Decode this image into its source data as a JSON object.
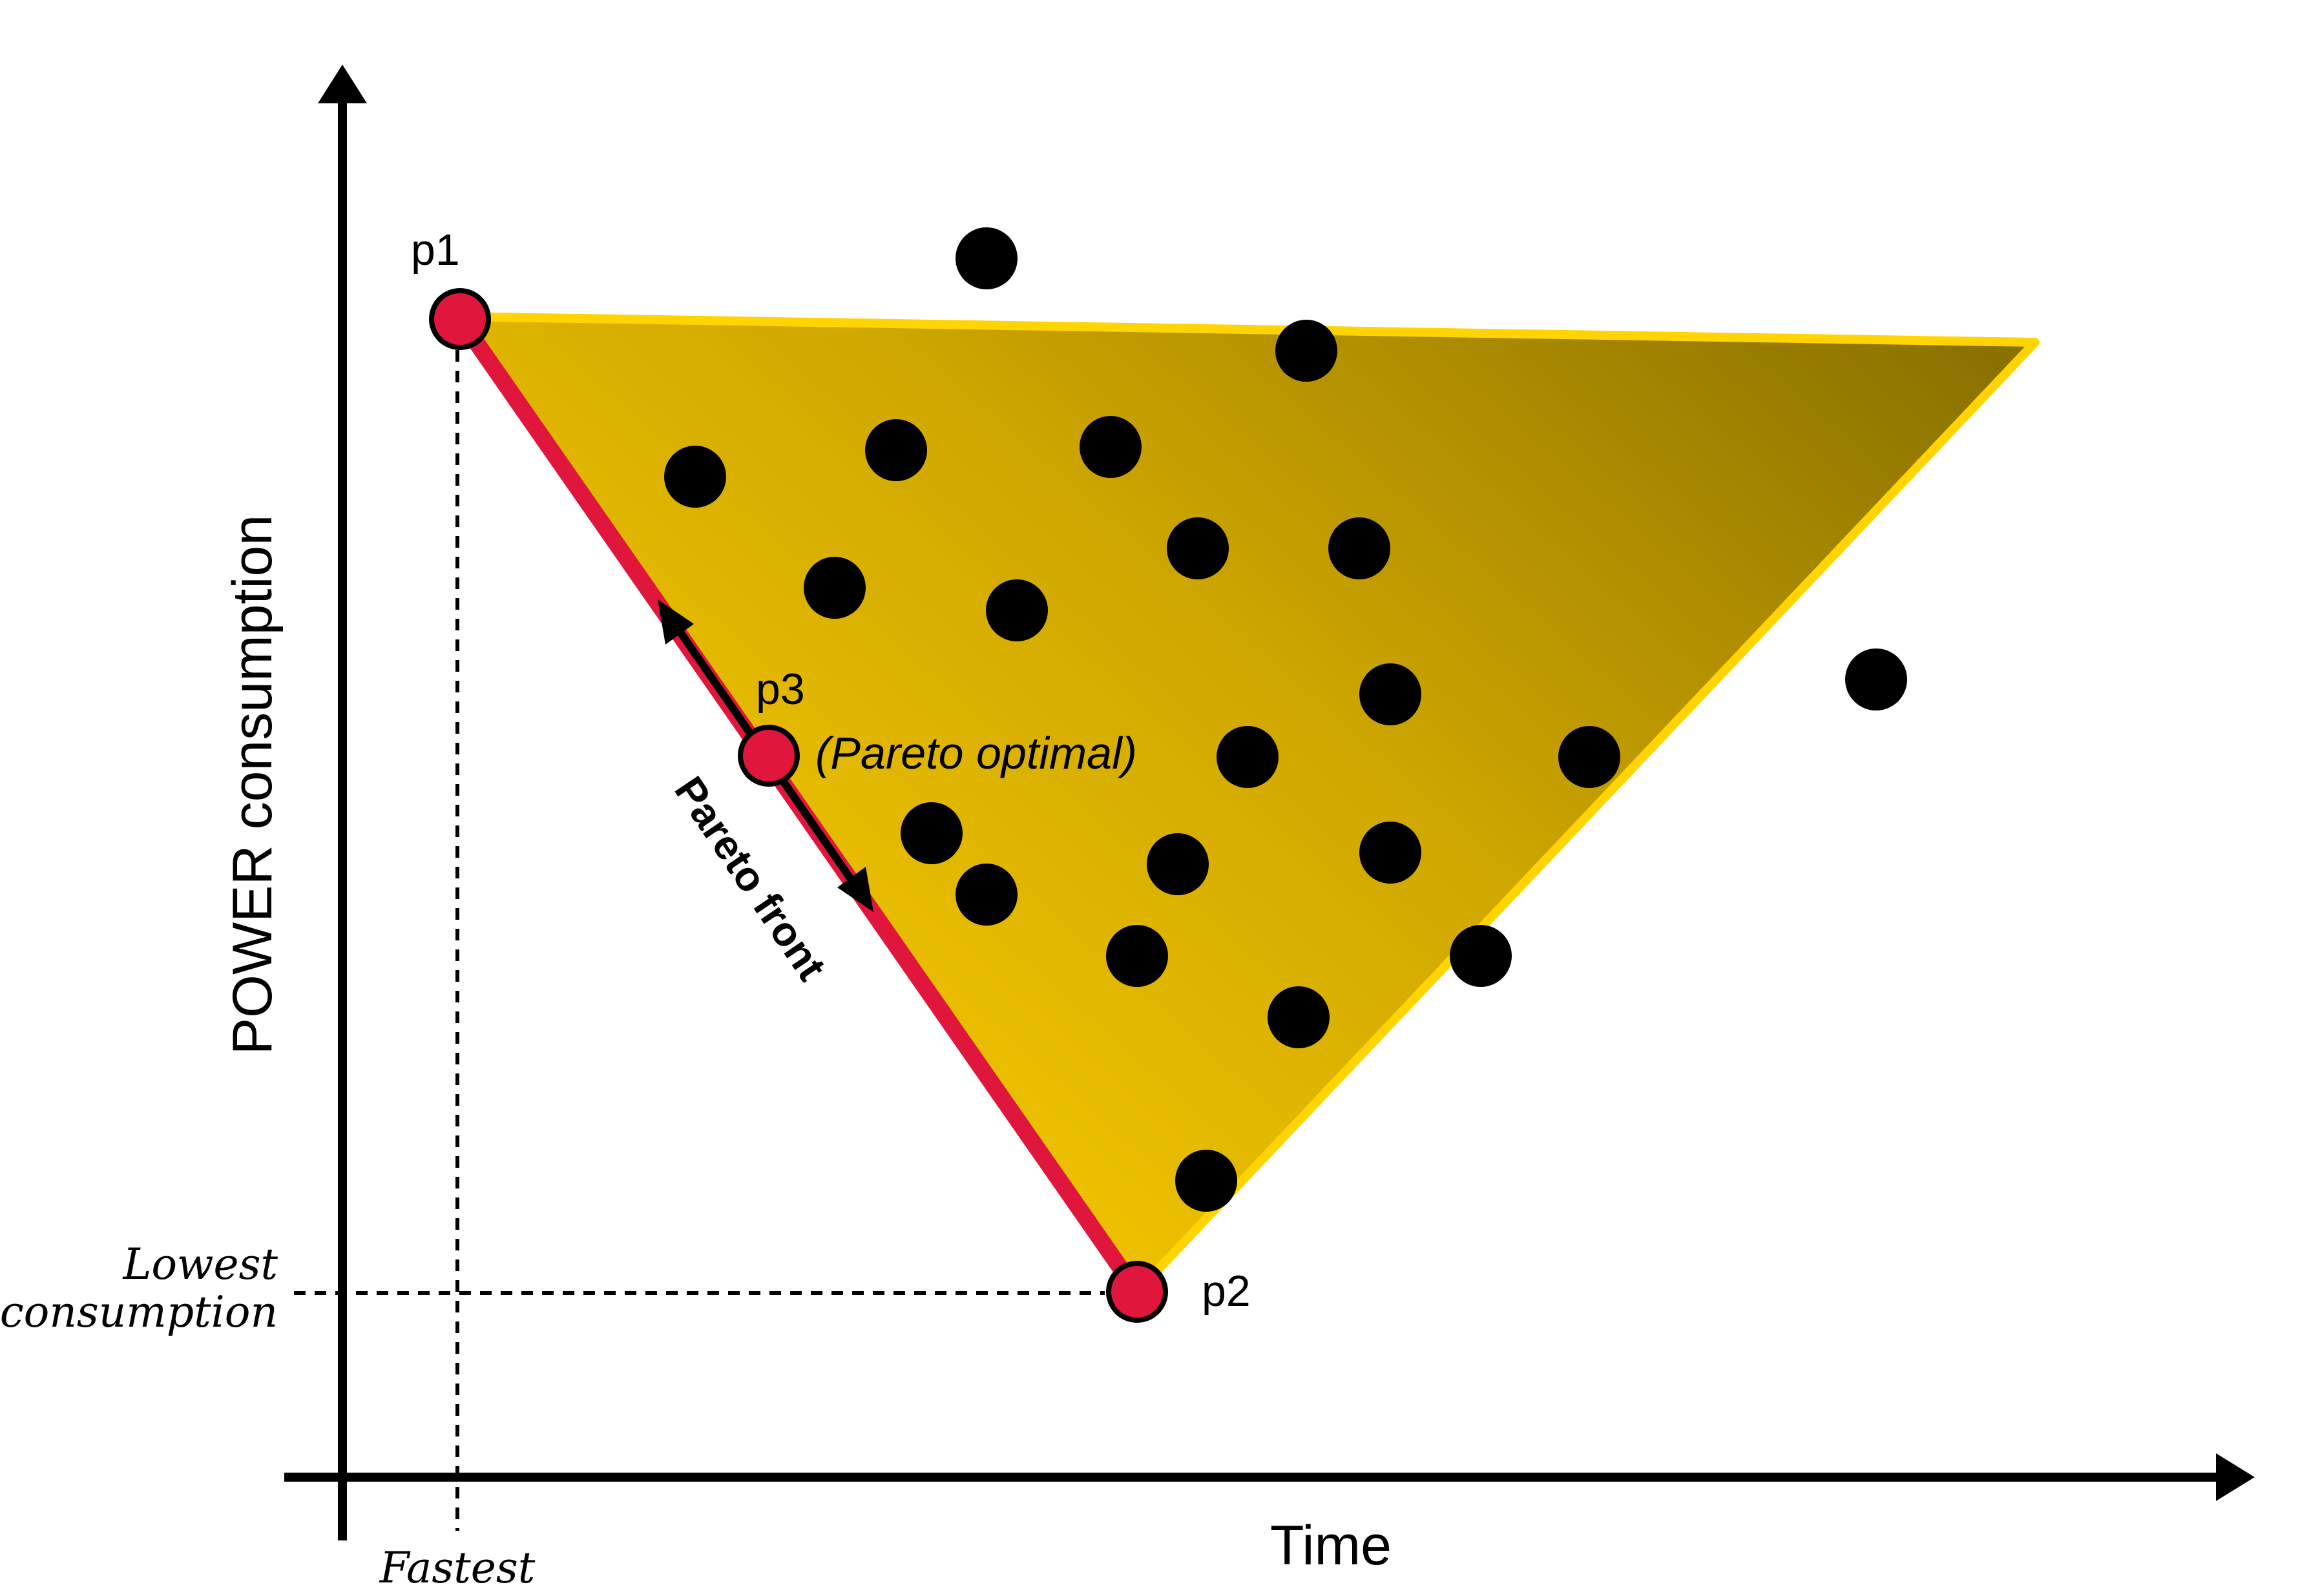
{
  "axes": {
    "y_label": "POWER consumption",
    "x_label": "Time"
  },
  "annotations": {
    "fastest": "Fastest",
    "lowest_line1": "Lowest",
    "lowest_line2": "consumption",
    "pareto_optimal": "(Pareto optimal)",
    "pareto_front": "Pareto front"
  },
  "points": {
    "p1": "p1",
    "p2": "p2",
    "p3": "p3"
  },
  "colors": {
    "region_light": "#f2c600",
    "region_dark": "#8c7300",
    "region_border": "#ffd400",
    "front": "#e0163c",
    "point_fill": "#e0163c",
    "dot": "#000000"
  }
}
